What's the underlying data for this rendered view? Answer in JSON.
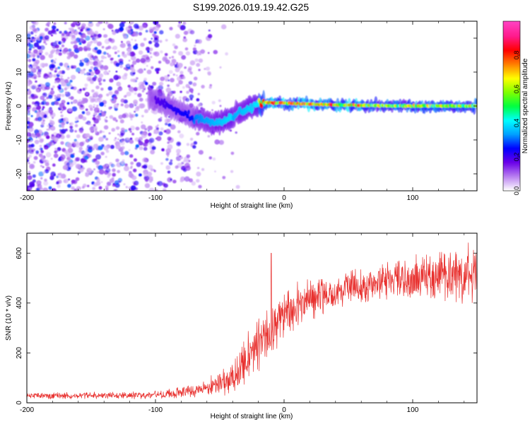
{
  "title": "S199.2026.019.19.42.G25",
  "chart_data": [
    {
      "type": "heatmap",
      "name": "spectrogram",
      "xlabel": "Height of straight line (km)",
      "ylabel": "Frequency (Hz)",
      "xlim": [
        -200,
        150
      ],
      "ylim": [
        -25,
        25
      ],
      "xticks": [
        -200,
        -100,
        0,
        100
      ],
      "xtick_labels": [
        "-200",
        "-100",
        "0",
        "100"
      ],
      "yticks": [
        -20,
        -10,
        0,
        10,
        20
      ],
      "ytick_labels": [
        "-20",
        "-10",
        "0",
        "10",
        "20"
      ],
      "ridge": {
        "x": [
          -100,
          -90,
          -80,
          -70,
          -60,
          -50,
          -40,
          -30,
          -20,
          -15,
          -10,
          0,
          20,
          50,
          100,
          150
        ],
        "y": [
          2,
          0,
          -2,
          -3.5,
          -4.5,
          -5,
          -3,
          -1,
          0.5,
          1,
          1,
          0.8,
          0.6,
          0.2,
          0,
          0
        ]
      },
      "colorbar": {
        "label": "Normalized spectral amplitude",
        "range": [
          0,
          1
        ],
        "ticks": [
          0.0,
          0.2,
          0.4,
          0.6,
          0.8
        ],
        "tick_labels": [
          "0.0",
          "0.2",
          "0.4",
          "0.6",
          "0.8"
        ],
        "colors": [
          "#ffffff",
          "#b87ff0",
          "#6a00e8",
          "#0000ff",
          "#00a0ff",
          "#00ffff",
          "#00ff40",
          "#80ff00",
          "#ffff00",
          "#ff8000",
          "#ff0000",
          "#ff1a8c",
          "#ff40c0"
        ]
      }
    },
    {
      "type": "line",
      "name": "snr",
      "xlabel": "Height of straight line (km)",
      "ylabel": "SNR (10 * v/v)",
      "xlim": [
        -200,
        150
      ],
      "ylim": [
        0,
        680
      ],
      "xticks": [
        -200,
        -100,
        0,
        100
      ],
      "xtick_labels": [
        "-200",
        "-100",
        "0",
        "100"
      ],
      "yticks": [
        0,
        200,
        400,
        600
      ],
      "ytick_labels": [
        "0",
        "200",
        "400",
        "600"
      ],
      "color": "#e8312f",
      "trend": {
        "x": [
          -200,
          -150,
          -100,
          -80,
          -60,
          -45,
          -35,
          -30,
          -25,
          -20,
          -15,
          -10,
          -5,
          0,
          10,
          20,
          40,
          60,
          80,
          100,
          120,
          140,
          150
        ],
        "y": [
          28,
          28,
          32,
          42,
          60,
          90,
          130,
          165,
          200,
          230,
          260,
          290,
          320,
          345,
          390,
          420,
          450,
          470,
          485,
          495,
          510,
          520,
          520
        ]
      },
      "noise": {
        "x": [
          -200,
          -100,
          -60,
          -40,
          -20,
          0,
          40,
          100,
          150
        ],
        "y": [
          12,
          15,
          30,
          70,
          110,
          115,
          60,
          85,
          110
        ]
      },
      "spike": {
        "x": -10,
        "y": 600
      }
    }
  ]
}
